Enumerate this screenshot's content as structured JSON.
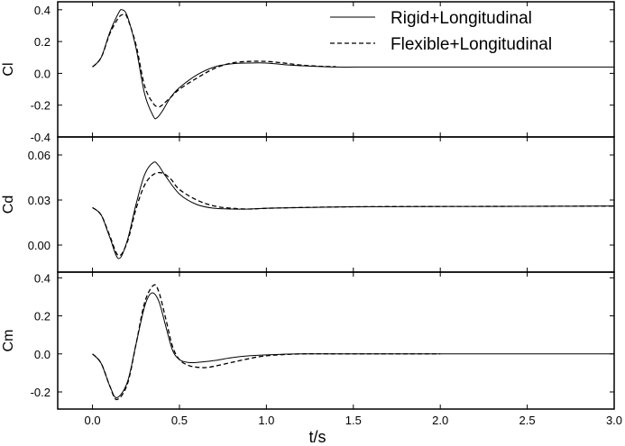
{
  "chart_data": [
    {
      "type": "line",
      "ylabel": "Cl",
      "xlim": [
        -0.2,
        3.0
      ],
      "ylim": [
        -0.4,
        0.45
      ],
      "yticks": [
        "-0.4",
        "-0.2",
        "0.0",
        "0.2",
        "0.4"
      ],
      "series": [
        {
          "name": "Rigid+Longitudinal",
          "style": "solid",
          "x": [
            0.0,
            0.05,
            0.1,
            0.15,
            0.17,
            0.2,
            0.25,
            0.3,
            0.35,
            0.37,
            0.4,
            0.45,
            0.5,
            0.6,
            0.7,
            0.8,
            0.9,
            1.0,
            1.1,
            1.2,
            1.4,
            1.6,
            2.0,
            2.5,
            3.0
          ],
          "y": [
            0.04,
            0.1,
            0.26,
            0.38,
            0.4,
            0.36,
            0.16,
            -0.13,
            -0.27,
            -0.28,
            -0.24,
            -0.15,
            -0.09,
            -0.01,
            0.04,
            0.06,
            0.065,
            0.065,
            0.055,
            0.048,
            0.04,
            0.04,
            0.04,
            0.04,
            0.04
          ]
        },
        {
          "name": "Flexible+Longitudinal",
          "style": "dashed",
          "x": [
            0.0,
            0.05,
            0.1,
            0.15,
            0.18,
            0.2,
            0.25,
            0.3,
            0.35,
            0.38,
            0.4,
            0.45,
            0.5,
            0.6,
            0.7,
            0.8,
            0.9,
            1.0,
            1.1,
            1.2,
            1.3,
            1.4
          ],
          "y": [
            0.04,
            0.1,
            0.25,
            0.35,
            0.37,
            0.35,
            0.18,
            -0.08,
            -0.19,
            -0.21,
            -0.2,
            -0.15,
            -0.1,
            -0.03,
            0.03,
            0.065,
            0.075,
            0.075,
            0.065,
            0.052,
            0.045,
            0.042
          ]
        }
      ],
      "legend": "top-right"
    },
    {
      "type": "line",
      "ylabel": "Cd",
      "xlim": [
        -0.2,
        3.0
      ],
      "ylim": [
        -0.018,
        0.072
      ],
      "yticks": [
        "0.00",
        "0.03",
        "0.06"
      ],
      "series": [
        {
          "name": "Rigid+Longitudinal",
          "style": "solid",
          "x": [
            0.0,
            0.05,
            0.1,
            0.15,
            0.2,
            0.25,
            0.3,
            0.35,
            0.38,
            0.42,
            0.5,
            0.6,
            0.7,
            0.8,
            0.9,
            1.0,
            1.2,
            1.5,
            2.0,
            2.5,
            3.0
          ],
          "y": [
            0.025,
            0.02,
            0.005,
            -0.009,
            0.003,
            0.027,
            0.047,
            0.055,
            0.053,
            0.046,
            0.034,
            0.027,
            0.0245,
            0.024,
            0.024,
            0.0245,
            0.025,
            0.0255,
            0.0257,
            0.0258,
            0.026
          ]
        },
        {
          "name": "Flexible+Longitudinal",
          "style": "dashed",
          "x": [
            0.0,
            0.05,
            0.1,
            0.15,
            0.2,
            0.25,
            0.3,
            0.35,
            0.4,
            0.45,
            0.5,
            0.6,
            0.7,
            0.8,
            0.9,
            1.0,
            1.2,
            1.5,
            2.0,
            2.5,
            3.0
          ],
          "y": [
            0.025,
            0.02,
            0.006,
            -0.007,
            0.002,
            0.024,
            0.04,
            0.047,
            0.048,
            0.044,
            0.037,
            0.03,
            0.026,
            0.0245,
            0.024,
            0.0245,
            0.025,
            0.0255,
            0.0257,
            0.0258,
            0.026
          ]
        }
      ]
    },
    {
      "type": "line",
      "ylabel": "Cm",
      "xlabel": "t/s",
      "xlim": [
        -0.2,
        3.0
      ],
      "ylim": [
        -0.29,
        0.43
      ],
      "yticks": [
        "-0.2",
        "0.0",
        "0.2",
        "0.4"
      ],
      "xticks": [
        "0.0",
        "0.5",
        "1.0",
        "1.5",
        "2.0",
        "2.5",
        "3.0"
      ],
      "series": [
        {
          "name": "Rigid+Longitudinal",
          "style": "solid",
          "x": [
            0.0,
            0.05,
            0.1,
            0.14,
            0.2,
            0.25,
            0.3,
            0.34,
            0.38,
            0.42,
            0.46,
            0.5,
            0.55,
            0.6,
            0.7,
            0.8,
            0.9,
            1.0,
            1.2,
            1.5,
            2.0,
            2.5,
            3.0
          ],
          "y": [
            0.0,
            -0.05,
            -0.17,
            -0.23,
            -0.15,
            0.05,
            0.25,
            0.32,
            0.28,
            0.15,
            0.02,
            -0.03,
            -0.045,
            -0.045,
            -0.035,
            -0.02,
            -0.01,
            -0.005,
            0.0,
            0.0,
            0.0,
            0.0,
            0.0
          ]
        },
        {
          "name": "Flexible+Longitudinal",
          "style": "dashed",
          "x": [
            0.0,
            0.05,
            0.1,
            0.14,
            0.2,
            0.25,
            0.3,
            0.35,
            0.38,
            0.42,
            0.46,
            0.5,
            0.55,
            0.6,
            0.65,
            0.7,
            0.8,
            0.9,
            1.0,
            1.2,
            1.5,
            2.0
          ],
          "y": [
            0.0,
            -0.05,
            -0.17,
            -0.24,
            -0.16,
            0.05,
            0.27,
            0.36,
            0.33,
            0.19,
            0.04,
            -0.03,
            -0.06,
            -0.07,
            -0.072,
            -0.065,
            -0.045,
            -0.025,
            -0.01,
            0.0,
            0.0,
            0.0
          ]
        }
      ]
    }
  ]
}
